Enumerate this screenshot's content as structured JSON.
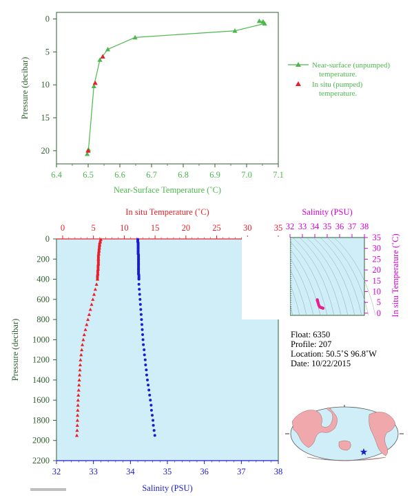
{
  "colors": {
    "top_axis": "#2f5f2f",
    "near_surface": "#4cb84c",
    "in_situ": "#e8202a",
    "salinity": "#1b1bd0",
    "profile_bg": "#d0eef8",
    "magenta": "#d400d4",
    "ts_curve": "#e8208a"
  },
  "chart_data": [
    {
      "type": "line",
      "xlabel": "Near-Surface Temperature (˚C)",
      "ylabel": "Pressure (decibar)",
      "xlim": [
        6.4,
        7.1
      ],
      "ylim": [
        22,
        -1
      ],
      "xticks": [
        "6.4",
        "6.5",
        "6.6",
        "6.7",
        "6.8",
        "6.9",
        "7.0",
        "7.1"
      ],
      "yticks": [
        "0",
        "5",
        "10",
        "15",
        "20"
      ],
      "legend_position": "right",
      "series": [
        {
          "name": "Near-surface (unpumped) temperature.",
          "x": [
            6.497,
            6.501,
            6.518,
            6.537,
            6.562,
            6.648,
            6.963,
            7.04,
            7.052,
            7.057
          ],
          "y": [
            20.5,
            19.8,
            10.2,
            6.2,
            4.6,
            2.8,
            1.8,
            0.3,
            0.4,
            0.7
          ]
        },
        {
          "name": "In situ (pumped) temperature.",
          "x": [
            6.5,
            6.522,
            6.546
          ],
          "y": [
            20.0,
            9.7,
            5.7
          ]
        }
      ]
    },
    {
      "type": "scatter",
      "ylabel": "Pressure (decibar)",
      "x_top_label": "In situ Temperature (˚C)",
      "x_bottom_label": "Salinity (PSU)",
      "temp_lim": [
        -1,
        35
      ],
      "temp_ticks": [
        "0",
        "5",
        "10",
        "15",
        "20",
        "25",
        "30",
        "35"
      ],
      "sal_lim": [
        32,
        38
      ],
      "sal_ticks": [
        "32",
        "33",
        "34",
        "35",
        "36",
        "37",
        "38"
      ],
      "ylim": [
        2200,
        0
      ],
      "yticks": [
        "0",
        "200",
        "400",
        "600",
        "800",
        "1000",
        "1200",
        "1400",
        "1600",
        "1800",
        "2000",
        "2200"
      ],
      "series": [
        {
          "name": "In situ Temperature",
          "pressure": [
            5,
            30,
            60,
            90,
            120,
            150,
            200,
            250,
            300,
            350,
            400,
            450,
            500,
            550,
            600,
            650,
            700,
            750,
            800,
            850,
            900,
            950,
            1000,
            1050,
            1100,
            1150,
            1200,
            1250,
            1300,
            1350,
            1400,
            1450,
            1500,
            1550,
            1600,
            1650,
            1700,
            1750,
            1800,
            1850,
            1900,
            1950
          ],
          "values": [
            6.2,
            6.1,
            6.0,
            5.95,
            5.9,
            5.85,
            5.8,
            5.8,
            5.75,
            5.7,
            5.65,
            5.5,
            5.3,
            5.1,
            4.9,
            4.7,
            4.5,
            4.3,
            4.1,
            3.9,
            3.7,
            3.5,
            3.35,
            3.2,
            3.1,
            3.0,
            2.9,
            2.85,
            2.8,
            2.75,
            2.7,
            2.65,
            2.6,
            2.55,
            2.5,
            2.48,
            2.45,
            2.42,
            2.4,
            2.38,
            2.35,
            2.3
          ]
        },
        {
          "name": "Salinity",
          "pressure": [
            5,
            30,
            60,
            90,
            120,
            150,
            200,
            250,
            300,
            350,
            400,
            450,
            500,
            550,
            600,
            650,
            700,
            750,
            800,
            850,
            900,
            950,
            1000,
            1050,
            1100,
            1150,
            1200,
            1250,
            1300,
            1350,
            1400,
            1450,
            1500,
            1550,
            1600,
            1650,
            1700,
            1750,
            1800,
            1850,
            1900,
            1950
          ],
          "values": [
            34.2,
            34.2,
            34.21,
            34.21,
            34.21,
            34.21,
            34.22,
            34.22,
            34.22,
            34.22,
            34.23,
            34.23,
            34.24,
            34.25,
            34.26,
            34.27,
            34.28,
            34.29,
            34.3,
            34.31,
            34.32,
            34.33,
            34.34,
            34.35,
            34.37,
            34.38,
            34.4,
            34.41,
            34.43,
            34.44,
            34.46,
            34.48,
            34.5,
            34.52,
            34.54,
            34.56,
            34.57,
            34.59,
            34.61,
            34.62,
            34.64,
            34.66
          ]
        }
      ]
    },
    {
      "type": "scatter",
      "x_top_label": "Salinity (PSU)",
      "y_right_label": "In situ Temperature (˚C)",
      "sal_lim": [
        32,
        38
      ],
      "sal_ticks": [
        "32",
        "33",
        "34",
        "35",
        "36",
        "37",
        "38"
      ],
      "temp_lim": [
        -1,
        35
      ],
      "temp_ticks": [
        "0",
        "5",
        "10",
        "15",
        "20",
        "25",
        "30",
        "35"
      ],
      "series": [
        {
          "name": "T-S curve",
          "x": [
            34.2,
            34.21,
            34.22,
            34.26,
            34.32,
            34.4,
            34.5,
            34.62,
            34.66
          ],
          "y": [
            6.2,
            5.9,
            5.7,
            4.9,
            3.7,
            2.9,
            2.6,
            2.4,
            2.3
          ]
        }
      ]
    }
  ],
  "info": {
    "float": "Float:  6350",
    "profile": "Profile:  207",
    "location": "Location:  50.5˚S  96.8˚W",
    "date": "Date:  10/22/2015"
  },
  "map": {
    "marker_icon": "star-icon"
  }
}
